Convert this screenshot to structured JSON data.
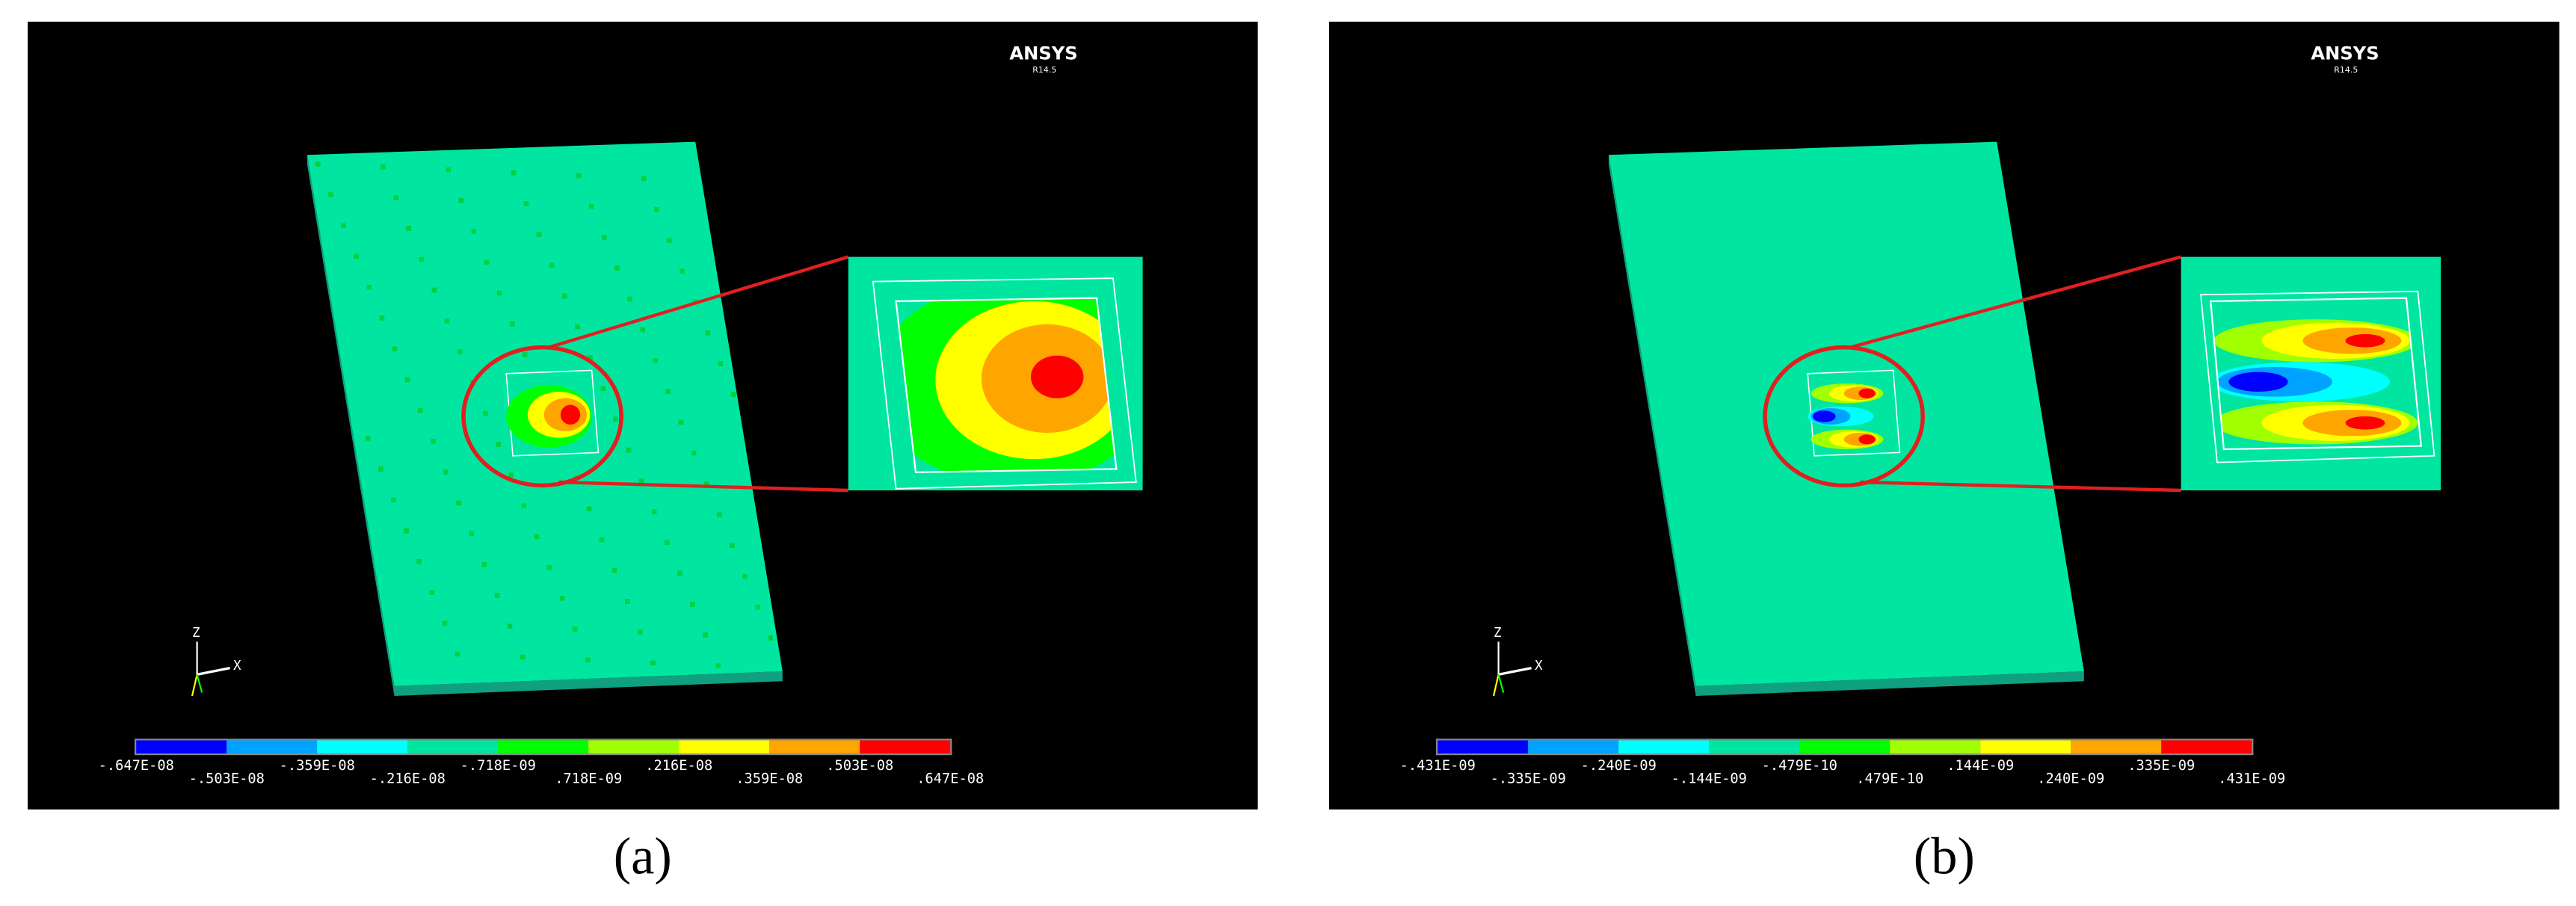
{
  "panels": [
    {
      "logo": "ANSYS",
      "version": "R14.5",
      "axes": {
        "z": "Z",
        "x": "X"
      },
      "colorbar": {
        "colors": [
          "#0000ff",
          "#00a2ff",
          "#00ffff",
          "#00e6a0",
          "#00ff00",
          "#a0ff00",
          "#ffff00",
          "#ffa500",
          "#ff0000"
        ],
        "labels": [
          "-.647E-08",
          "-.503E-08",
          "-.359E-08",
          "-.216E-08",
          "-.718E-09",
          ".718E-09",
          ".216E-08",
          ".359E-08",
          ".503E-08",
          ".647E-08"
        ]
      },
      "caption": "(a)"
    },
    {
      "logo": "ANSYS",
      "version": "R14.5",
      "axes": {
        "z": "Z",
        "x": "X"
      },
      "colorbar": {
        "colors": [
          "#0000ff",
          "#00a2ff",
          "#00ffff",
          "#00e6a0",
          "#00ff00",
          "#a0ff00",
          "#ffff00",
          "#ffa500",
          "#ff0000"
        ],
        "labels": [
          "-.431E-09",
          "-.335E-09",
          "-.240E-09",
          "-.144E-09",
          "-.479E-10",
          ".479E-10",
          ".144E-09",
          ".240E-09",
          ".335E-09",
          ".431E-09"
        ]
      },
      "caption": "(b)"
    }
  ]
}
